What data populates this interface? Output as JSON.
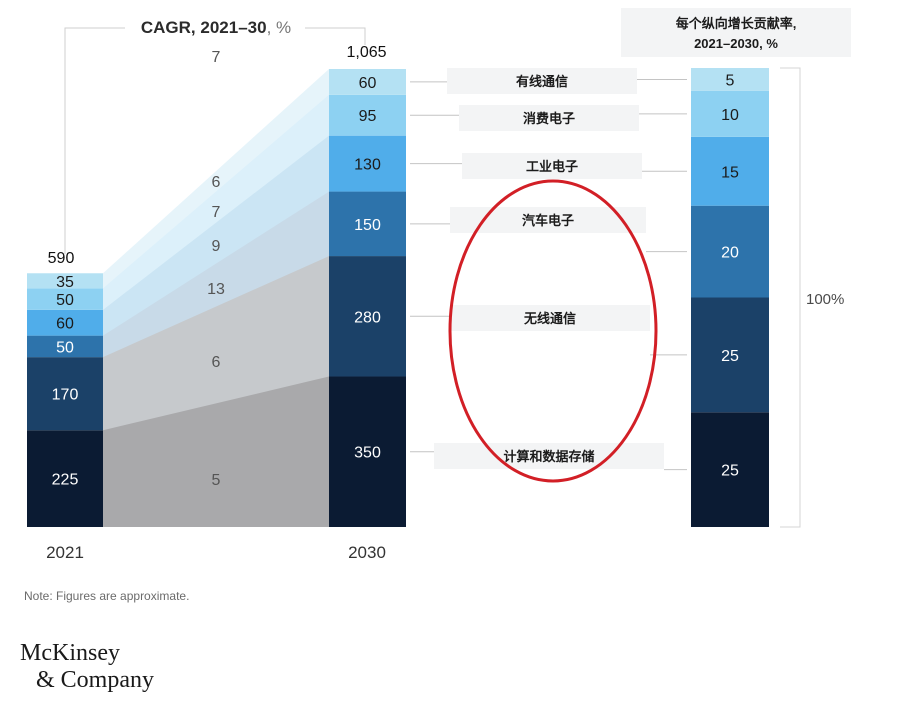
{
  "chart_data": {
    "type": "bar",
    "title": "CAGR, 2021–30, %",
    "categories": [
      "2021",
      "2030"
    ],
    "segments": [
      "计算和数据存储",
      "无线通信",
      "汽车电子",
      "工业电子",
      "消费电子",
      "有线通信"
    ],
    "values_2021": [
      225,
      170,
      50,
      60,
      50,
      35
    ],
    "values_2030": [
      350,
      280,
      150,
      130,
      95,
      60
    ],
    "totals": {
      "2021": "590",
      "2030": "1,065"
    },
    "cagr": [
      "5",
      "6",
      "13",
      "9",
      "7",
      "6",
      "7"
    ],
    "contribution": {
      "title_line1": "每个纵向增长贡献率,",
      "title_line2": "2021–2030, %",
      "values": [
        25,
        25,
        20,
        15,
        10,
        5
      ],
      "total": "100%"
    },
    "colors": [
      "#0b1b33",
      "#1b4168",
      "#2d73ab",
      "#50adea",
      "#8dd1f2",
      "#b4e1f3"
    ],
    "connector_colors": [
      "#a9a9ab",
      "#c6c9cc",
      "#c8dae8",
      "#cbe5f4",
      "#dcf0fa",
      "#e6f4fa"
    ]
  },
  "note": "Note: Figures are approximate.",
  "logo": {
    "line1": "McKinsey",
    "line2": "& Company"
  }
}
